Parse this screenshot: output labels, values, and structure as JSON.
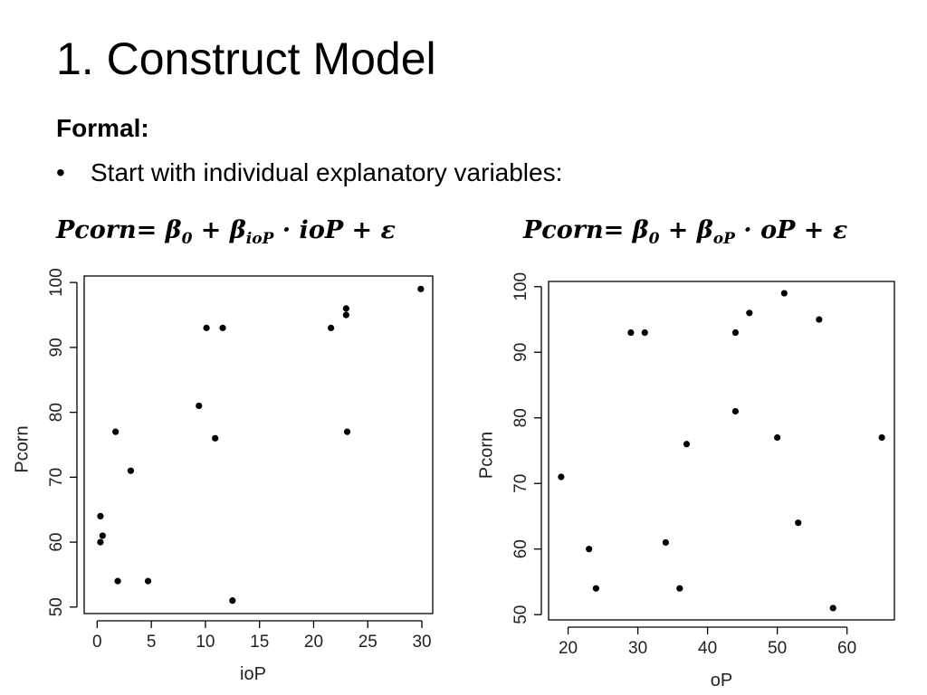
{
  "slide": {
    "title": "1. Construct Model",
    "subtitle": "Formal:",
    "bullet": "Start with individual explanatory variables:",
    "formula_left": {
      "lhs": "Pcorn",
      "mid": "= β",
      "b0sub": "0",
      "plus1": " + β",
      "bsub": "ioP",
      "rest": " · ioP + ε"
    },
    "formula_right": {
      "lhs": "Pcorn",
      "mid": "= β",
      "b0sub": "0",
      "plus1": " + β",
      "bsub": "oP",
      "rest": " · oP + ε"
    }
  },
  "chart_data": [
    {
      "type": "scatter",
      "title": "",
      "xlabel": "ioP",
      "ylabel": "Pcorn",
      "xlim": [
        -1.2,
        31
      ],
      "ylim": [
        49,
        101
      ],
      "xticks": [
        0,
        5,
        10,
        15,
        20,
        25,
        30
      ],
      "yticks": [
        50,
        60,
        70,
        80,
        90,
        100
      ],
      "grid": false,
      "points": [
        {
          "x": 0.3,
          "y": 64
        },
        {
          "x": 0.5,
          "y": 61
        },
        {
          "x": 0.3,
          "y": 60
        },
        {
          "x": 1.7,
          "y": 77
        },
        {
          "x": 1.9,
          "y": 54
        },
        {
          "x": 3.1,
          "y": 71
        },
        {
          "x": 4.7,
          "y": 54
        },
        {
          "x": 9.4,
          "y": 81
        },
        {
          "x": 10.1,
          "y": 93
        },
        {
          "x": 10.9,
          "y": 76
        },
        {
          "x": 11.6,
          "y": 93
        },
        {
          "x": 12.5,
          "y": 51
        },
        {
          "x": 21.6,
          "y": 93
        },
        {
          "x": 23.0,
          "y": 96
        },
        {
          "x": 23.0,
          "y": 95
        },
        {
          "x": 23.1,
          "y": 77
        },
        {
          "x": 29.9,
          "y": 99
        }
      ]
    },
    {
      "type": "scatter",
      "title": "",
      "xlabel": "oP",
      "ylabel": "Pcorn",
      "xlim": [
        17.2,
        66.8
      ],
      "ylim": [
        49.2,
        100.8
      ],
      "xticks": [
        20,
        30,
        40,
        50,
        60
      ],
      "yticks": [
        50,
        60,
        70,
        80,
        90,
        100
      ],
      "grid": false,
      "points": [
        {
          "x": 19,
          "y": 71
        },
        {
          "x": 23,
          "y": 60
        },
        {
          "x": 24,
          "y": 54
        },
        {
          "x": 29,
          "y": 93
        },
        {
          "x": 31,
          "y": 93
        },
        {
          "x": 34,
          "y": 61
        },
        {
          "x": 36,
          "y": 54
        },
        {
          "x": 37,
          "y": 76
        },
        {
          "x": 44,
          "y": 93
        },
        {
          "x": 44,
          "y": 81
        },
        {
          "x": 46,
          "y": 96
        },
        {
          "x": 50,
          "y": 77
        },
        {
          "x": 51,
          "y": 99
        },
        {
          "x": 53,
          "y": 64
        },
        {
          "x": 56,
          "y": 95
        },
        {
          "x": 58,
          "y": 51
        },
        {
          "x": 65,
          "y": 77
        }
      ]
    }
  ]
}
